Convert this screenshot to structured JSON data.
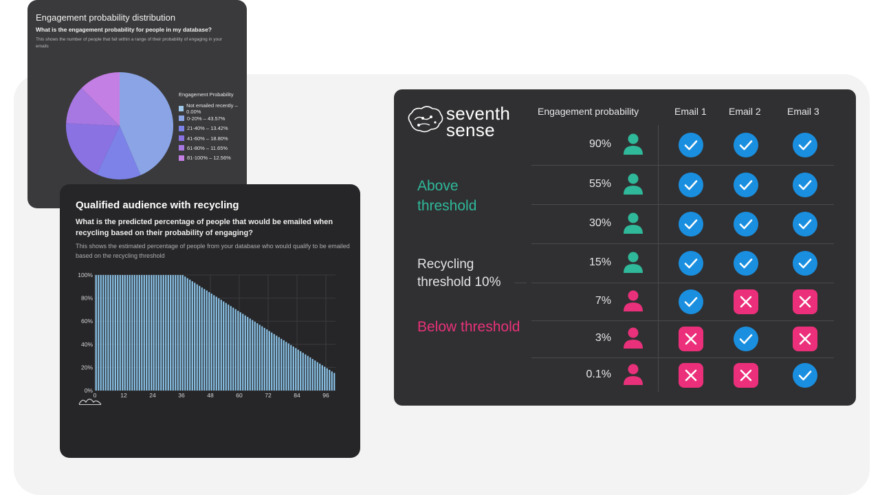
{
  "pie_card": {
    "title": "Engagement probability distribution",
    "question": "What is the engagement probability for people in my database?",
    "description": "This shows the number of people that fall within a range of their probability of engaging in your emails",
    "legend_title": "Engagement Probability",
    "legend": [
      "Not emailed recently – 0.00%",
      "0-20% – 43.57%",
      "21-40% – 13.42%",
      "41-60% – 18.80%",
      "61-80% – 11.65%",
      "81-100% – 12.56%"
    ],
    "colors": [
      "#9ec9ea",
      "#8aa4e6",
      "#7c82e8",
      "#8a72e3",
      "#a777e2",
      "#c37fe4"
    ]
  },
  "bar_card": {
    "title": "Qualified audience with recycling",
    "question": "What is the predicted percentage of people that would be emailed when recycling based on their probability of engaging?",
    "description": "This shows the estimated percentage of people from your database who would qualify to be emailed based on the recycling threshold",
    "bar_color": "#8cc6ec"
  },
  "table": {
    "brand_line1": "seventh",
    "brand_line2": "sense",
    "headers": [
      "Engagement probability",
      "Email 1",
      "Email 2",
      "Email 3"
    ],
    "groups": {
      "above": "Above threshold",
      "recycling": "Recycling threshold 10%",
      "below": "Below threshold"
    },
    "rows": [
      {
        "pct": "90%",
        "status": "above",
        "emails": [
          "check",
          "check",
          "check"
        ]
      },
      {
        "pct": "55%",
        "status": "above",
        "emails": [
          "check",
          "check",
          "check"
        ]
      },
      {
        "pct": "30%",
        "status": "above",
        "emails": [
          "check",
          "check",
          "check"
        ]
      },
      {
        "pct": "15%",
        "status": "above",
        "emails": [
          "check",
          "check",
          "check"
        ]
      },
      {
        "pct": "7%",
        "status": "below",
        "emails": [
          "check",
          "cross",
          "cross"
        ]
      },
      {
        "pct": "3%",
        "status": "below",
        "emails": [
          "cross",
          "check",
          "cross"
        ]
      },
      {
        "pct": "0.1%",
        "status": "below",
        "emails": [
          "cross",
          "cross",
          "check"
        ]
      }
    ],
    "colors": {
      "above": "#2fb89a",
      "below": "#e8317a",
      "check": "#1a8fe0",
      "cross": "#ec2f7a"
    }
  },
  "chart_data": [
    {
      "type": "pie",
      "title": "Engagement probability distribution",
      "categories": [
        "Not emailed recently",
        "0-20%",
        "21-40%",
        "41-60%",
        "61-80%",
        "81-100%"
      ],
      "values": [
        0.0,
        43.57,
        13.42,
        18.8,
        11.65,
        12.56
      ],
      "legend": "right"
    },
    {
      "type": "bar",
      "title": "Qualified audience with recycling",
      "xlabel": "",
      "ylabel": "",
      "x_ticks": [
        "0",
        "12",
        "24",
        "36",
        "48",
        "60",
        "72",
        "84",
        "96"
      ],
      "y_ticks": [
        "0%",
        "20%",
        "40%",
        "60%",
        "80%",
        "100%"
      ],
      "xlim": [
        0,
        100
      ],
      "ylim": [
        0,
        100
      ],
      "grid": true,
      "x": [
        0,
        1,
        2,
        3,
        4,
        5,
        6,
        7,
        8,
        9,
        10,
        11,
        12,
        13,
        14,
        15,
        16,
        17,
        18,
        19,
        20,
        21,
        22,
        23,
        24,
        25,
        26,
        27,
        28,
        29,
        30,
        31,
        32,
        33,
        34,
        35,
        36,
        37,
        38,
        39,
        40,
        41,
        42,
        43,
        44,
        45,
        46,
        47,
        48,
        49,
        50,
        51,
        52,
        53,
        54,
        55,
        56,
        57,
        58,
        59,
        60,
        61,
        62,
        63,
        64,
        65,
        66,
        67,
        68,
        69,
        70,
        71,
        72,
        73,
        74,
        75,
        76,
        77,
        78,
        79,
        80,
        81,
        82,
        83,
        84,
        85,
        86,
        87,
        88,
        89,
        90,
        91,
        92,
        93,
        94,
        95,
        96,
        97,
        98,
        99
      ],
      "values": [
        100,
        100,
        100,
        100,
        100,
        100,
        100,
        100,
        100,
        100,
        100,
        100,
        100,
        100,
        100,
        100,
        100,
        100,
        100,
        100,
        100,
        100,
        100,
        100,
        100,
        100,
        100,
        100,
        100,
        100,
        100,
        100,
        100,
        100,
        100,
        100,
        100,
        98.7,
        97.3,
        96,
        94.6,
        93.3,
        91.9,
        90.6,
        89.2,
        87.9,
        86.6,
        85.2,
        83.9,
        82.5,
        81.2,
        79.8,
        78.5,
        77.1,
        75.8,
        74.4,
        73.1,
        71.7,
        70.4,
        69,
        67.7,
        66.4,
        65,
        63.7,
        62.3,
        61,
        59.6,
        58.3,
        56.9,
        55.6,
        54.2,
        52.9,
        51.5,
        50.2,
        48.9,
        47.5,
        46.2,
        44.8,
        43.5,
        42.1,
        40.8,
        39.4,
        38.1,
        36.7,
        35.4,
        34,
        32.7,
        31.3,
        30,
        28.7,
        27.3,
        26,
        24.6,
        23.3,
        21.9,
        20.6,
        19.2,
        17.9,
        16.5,
        15.2
      ]
    }
  ]
}
